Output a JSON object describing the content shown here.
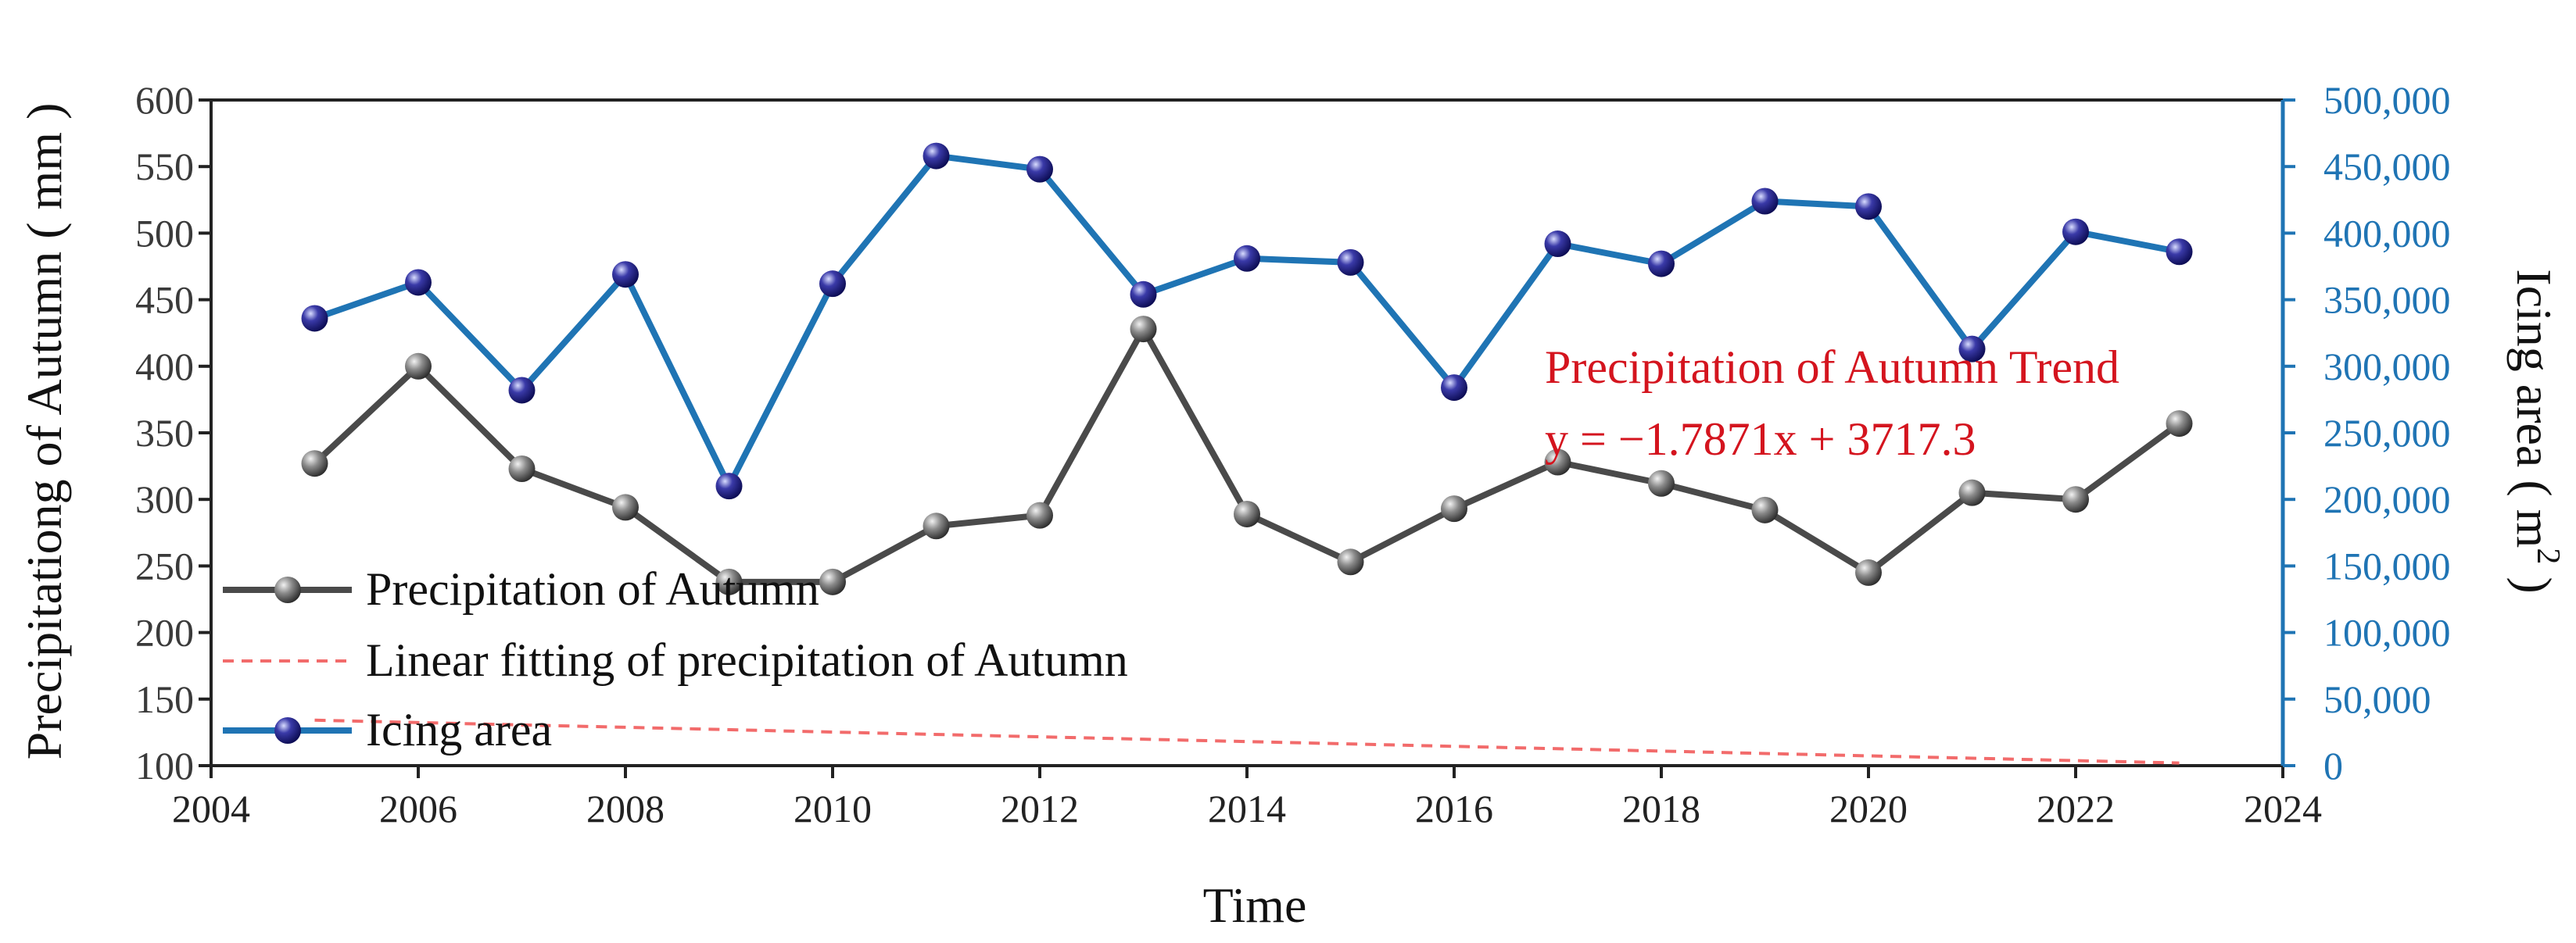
{
  "chart_data": {
    "type": "line",
    "xlabel": "Time",
    "ylabel_left": "Precipitationg of Autumn ( mm )",
    "ylabel_right": {
      "prefix": "Icing area ( m",
      "superscript": "2",
      "suffix": " )"
    },
    "xlim": [
      2004,
      2024
    ],
    "x_ticks": [
      "2004",
      "2006",
      "2008",
      "2010",
      "2012",
      "2014",
      "2016",
      "2018",
      "2020",
      "2022",
      "2024"
    ],
    "ylim_left": [
      100,
      600
    ],
    "y_ticks_left": [
      "100",
      "150",
      "200",
      "250",
      "300",
      "350",
      "400",
      "450",
      "500",
      "550",
      "600"
    ],
    "ylim_right": [
      0,
      500000
    ],
    "y_ticks_right": [
      "0",
      "50,000",
      "100,000",
      "150,000",
      "200,000",
      "250,000",
      "300,000",
      "350,000",
      "400,000",
      "450,000",
      "500,000"
    ],
    "x": [
      2005,
      2006,
      2007,
      2008,
      2009,
      2010,
      2011,
      2012,
      2013,
      2014,
      2015,
      2016,
      2017,
      2018,
      2019,
      2020,
      2021,
      2022,
      2023
    ],
    "series": [
      {
        "name": "Precipitation of Autumn",
        "axis": "left",
        "color": "#4a4a4a",
        "values": [
          327,
          400,
          323,
          294,
          238,
          238,
          280,
          288,
          428,
          289,
          253,
          293,
          328,
          312,
          292,
          245,
          305,
          300,
          357
        ]
      },
      {
        "name": "Linear fitting of precipitation of Autumn",
        "axis": "left",
        "color": "#f26b6b",
        "style": "dashed",
        "slope": -1.7871,
        "intercept": 3717.3
      },
      {
        "name": "Icing area",
        "axis": "right",
        "color": "#1f74b4",
        "marker_color": "#1a1a7a",
        "values": [
          336000,
          363000,
          282000,
          369000,
          210000,
          362000,
          458000,
          448000,
          354000,
          381000,
          378000,
          284000,
          392000,
          377000,
          424000,
          420000,
          313000,
          401000,
          386000
        ]
      }
    ],
    "legend_position": "bottom-left",
    "annotation": {
      "title": "Precipitation of Autumn Trend",
      "equation": "y = −1.7871x + 3717.3"
    }
  }
}
